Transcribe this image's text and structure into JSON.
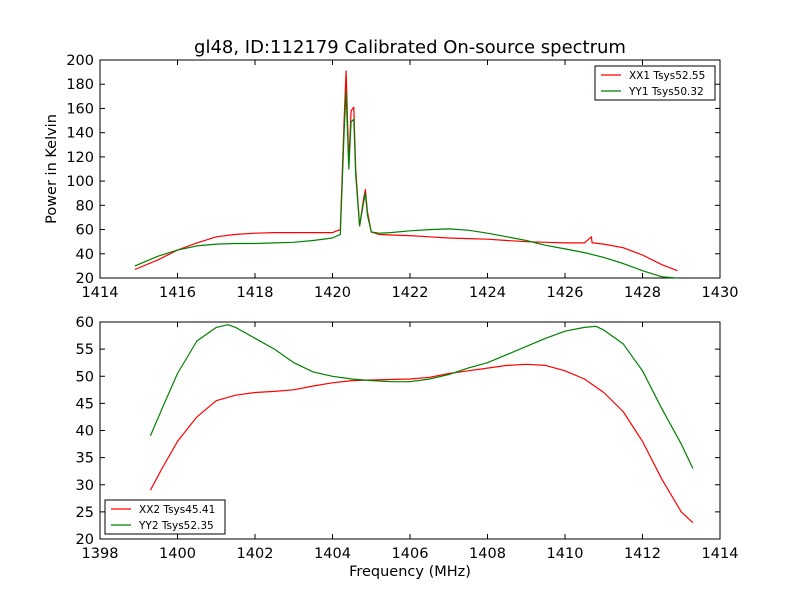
{
  "chart_data": [
    {
      "type": "line",
      "title": "gl48, ID:112179 Calibrated On-source spectrum",
      "xlabel": "",
      "ylabel": "Power in Kelvin",
      "xlim": [
        1414,
        1430
      ],
      "ylim": [
        20,
        200
      ],
      "xticks": [
        "1414",
        "1416",
        "1418",
        "1420",
        "1422",
        "1424",
        "1426",
        "1428",
        "1430"
      ],
      "yticks": [
        "20",
        "40",
        "60",
        "80",
        "100",
        "120",
        "140",
        "160",
        "180",
        "200"
      ],
      "grid": false,
      "legend_position": "top-right",
      "series": [
        {
          "name": "XX1 Tsys52.55",
          "color": "#ff0000",
          "x": [
            1414.9,
            1415.5,
            1416.0,
            1416.5,
            1417.0,
            1417.5,
            1418.0,
            1418.5,
            1419.0,
            1419.5,
            1420.0,
            1420.2,
            1420.3,
            1420.35,
            1420.42,
            1420.48,
            1420.55,
            1420.6,
            1420.7,
            1420.8,
            1420.85,
            1420.9,
            1421.0,
            1421.2,
            1421.5,
            1422.0,
            1422.5,
            1423.0,
            1423.5,
            1424.0,
            1424.5,
            1425.0,
            1425.5,
            1426.0,
            1426.5,
            1426.68,
            1426.7,
            1426.72,
            1427.0,
            1427.5,
            1428.0,
            1428.5,
            1428.9
          ],
          "y": [
            27,
            35,
            43,
            49,
            54,
            56,
            57,
            57.5,
            57.5,
            57.5,
            57.5,
            60,
            150,
            191,
            115,
            158,
            161,
            110,
            63,
            85,
            93,
            75,
            58,
            56,
            55.5,
            55,
            54,
            53,
            52.5,
            52,
            51,
            50,
            49.5,
            49,
            49,
            54,
            49,
            49,
            48,
            45,
            39,
            31,
            26
          ]
        },
        {
          "name": "YY1 Tsys50.32",
          "color": "#008000",
          "x": [
            1414.9,
            1415.5,
            1416.0,
            1416.5,
            1417.0,
            1417.5,
            1418.0,
            1418.5,
            1419.0,
            1419.5,
            1420.0,
            1420.2,
            1420.3,
            1420.35,
            1420.42,
            1420.48,
            1420.55,
            1420.6,
            1420.7,
            1420.8,
            1420.85,
            1420.9,
            1421.0,
            1421.2,
            1421.5,
            1422.0,
            1422.5,
            1423.0,
            1423.5,
            1424.0,
            1424.5,
            1425.0,
            1425.5,
            1426.0,
            1426.5,
            1427.0,
            1427.5,
            1428.0,
            1428.5,
            1428.9
          ],
          "y": [
            30,
            38,
            43,
            46.5,
            48,
            48.5,
            48.5,
            49,
            49.5,
            51,
            53,
            56,
            140,
            174,
            110,
            149,
            151,
            105,
            63,
            82,
            90,
            72,
            58,
            57,
            57.5,
            59,
            60,
            60.5,
            59.5,
            57,
            54,
            51,
            47,
            44,
            41,
            37,
            32,
            26,
            21,
            20
          ]
        }
      ]
    },
    {
      "type": "line",
      "title": "",
      "xlabel": "Frequency (MHz)",
      "ylabel": "",
      "xlim": [
        1398,
        1414
      ],
      "ylim": [
        20,
        60
      ],
      "xticks": [
        "1398",
        "1400",
        "1402",
        "1404",
        "1406",
        "1408",
        "1410",
        "1412",
        "1414"
      ],
      "yticks": [
        "20",
        "25",
        "30",
        "35",
        "40",
        "45",
        "50",
        "55",
        "60"
      ],
      "grid": false,
      "legend_position": "bottom-left",
      "series": [
        {
          "name": "XX2 Tsys45.41",
          "color": "#ff0000",
          "x": [
            1399.3,
            1399.6,
            1400.0,
            1400.5,
            1401.0,
            1401.5,
            1402.0,
            1402.5,
            1403.0,
            1403.5,
            1404.0,
            1404.5,
            1405.0,
            1405.5,
            1406.0,
            1406.5,
            1407.0,
            1407.5,
            1408.0,
            1408.5,
            1409.0,
            1409.5,
            1410.0,
            1410.5,
            1411.0,
            1411.5,
            1412.0,
            1412.5,
            1413.0,
            1413.3
          ],
          "y": [
            29,
            33,
            38,
            42.5,
            45.5,
            46.5,
            47,
            47.2,
            47.5,
            48.2,
            48.8,
            49.2,
            49.3,
            49.4,
            49.5,
            49.8,
            50.5,
            51,
            51.5,
            52,
            52.2,
            52,
            51,
            49.5,
            47,
            43.5,
            38,
            31,
            25,
            23
          ]
        },
        {
          "name": "YY2 Tsys52.35",
          "color": "#008000",
          "x": [
            1399.3,
            1399.6,
            1400.0,
            1400.5,
            1401.0,
            1401.3,
            1401.5,
            1402.0,
            1402.5,
            1403.0,
            1403.5,
            1404.0,
            1404.5,
            1405.0,
            1405.5,
            1406.0,
            1406.5,
            1407.0,
            1407.5,
            1408.0,
            1408.5,
            1409.0,
            1409.5,
            1410.0,
            1410.5,
            1410.8,
            1411.0,
            1411.5,
            1412.0,
            1412.5,
            1413.0,
            1413.3
          ],
          "y": [
            39,
            44,
            50.5,
            56.5,
            59,
            59.5,
            59,
            57,
            55,
            52.5,
            50.8,
            50,
            49.5,
            49.2,
            49,
            49,
            49.5,
            50.3,
            51.5,
            52.5,
            54,
            55.5,
            57,
            58.3,
            59,
            59.2,
            58.5,
            56,
            51,
            44,
            37.5,
            33
          ]
        }
      ]
    }
  ]
}
